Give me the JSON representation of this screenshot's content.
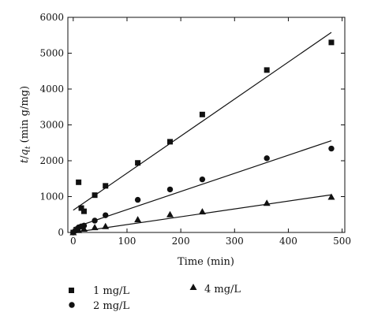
{
  "chart_data": {
    "type": "scatter",
    "title": "",
    "xlabel": "Time (min)",
    "ylabel_parts": [
      "t",
      "/",
      "q",
      "t",
      " (min g/mg)"
    ],
    "xlim": [
      -10,
      505
    ],
    "ylim": [
      0,
      6000
    ],
    "xticks": [
      0,
      100,
      200,
      300,
      400,
      500
    ],
    "yticks": [
      0,
      1000,
      2000,
      3000,
      4000,
      5000,
      6000
    ],
    "grid": false,
    "legend_position": "below",
    "series": [
      {
        "name": "1 mg/L",
        "marker": "square",
        "x": [
          0,
          10,
          15,
          20,
          40,
          60,
          120,
          180,
          240,
          360,
          480
        ],
        "y": [
          0,
          1400,
          680,
          590,
          1040,
          1300,
          1940,
          2530,
          3290,
          4530,
          5300
        ],
        "fit": [
          [
            0,
            620
          ],
          [
            480,
            5580
          ]
        ]
      },
      {
        "name": "2 mg/L",
        "marker": "circle",
        "x": [
          0,
          5,
          10,
          15,
          20,
          40,
          60,
          120,
          180,
          240,
          360,
          480
        ],
        "y": [
          0,
          60,
          140,
          170,
          190,
          330,
          480,
          910,
          1200,
          1480,
          2070,
          2340
        ],
        "fit": [
          [
            0,
            130
          ],
          [
            480,
            2560
          ]
        ]
      },
      {
        "name": "4 mg/L",
        "marker": "triangle",
        "x": [
          0,
          10,
          20,
          40,
          60,
          120,
          180,
          240,
          360,
          480
        ],
        "y": [
          0,
          60,
          100,
          140,
          170,
          360,
          500,
          580,
          820,
          990
        ],
        "fit": [
          [
            0,
            0
          ],
          [
            480,
            1050
          ]
        ]
      }
    ],
    "legend": [
      "1 mg/L",
      "2 mg/L",
      "4 mg/L"
    ]
  }
}
